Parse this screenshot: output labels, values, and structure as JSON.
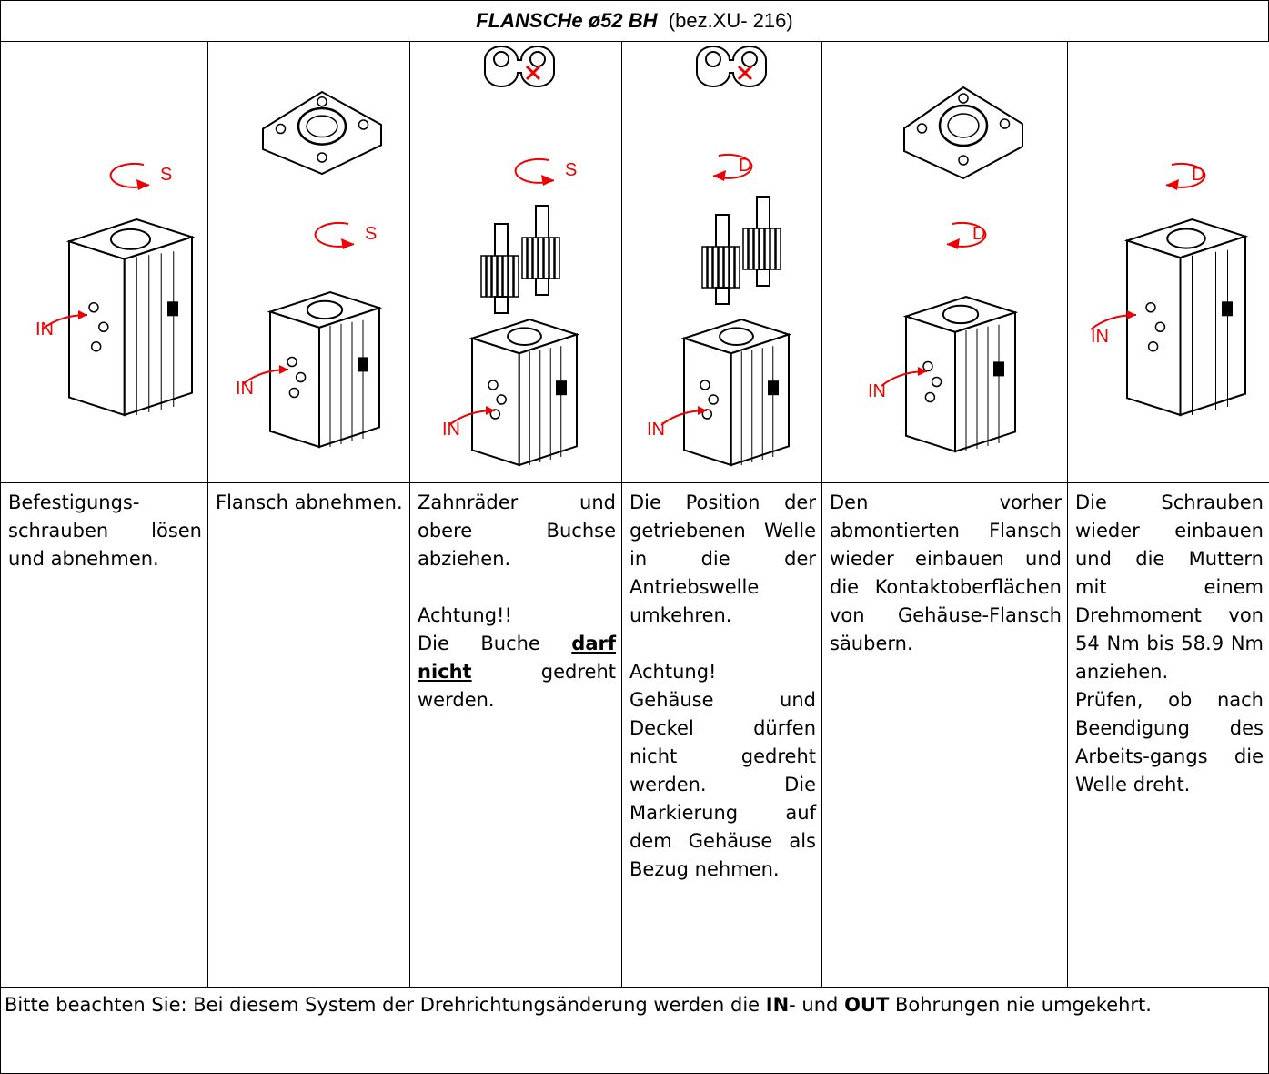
{
  "header": {
    "title": "FLANSCHe ø52 BH",
    "reference": "(bez.XU- 216)"
  },
  "columns": [
    {
      "image_labels": [
        "S",
        "IN"
      ],
      "paragraphs": [
        [
          {
            "text": "Befestigungs-schrauben lösen und abnehmen."
          }
        ]
      ]
    },
    {
      "image_labels": [
        "S",
        "IN"
      ],
      "paragraphs": [
        [
          {
            "text": "Flansch abnehmen."
          }
        ]
      ]
    },
    {
      "image_labels": [
        "S",
        "IN"
      ],
      "paragraphs": [
        [
          {
            "text": "Zahnräder und obere Buchse abziehen."
          }
        ],
        [],
        [
          {
            "text": "Achtung!!"
          }
        ],
        [
          {
            "text": "Die Buche "
          },
          {
            "text": "darf nicht",
            "bold": true,
            "underline": true
          },
          {
            "text": " gedreht werden."
          }
        ]
      ]
    },
    {
      "image_labels": [
        "D",
        "IN"
      ],
      "paragraphs": [
        [
          {
            "text": "Die Position der getriebenen Welle in die der Antriebswelle umkehren."
          }
        ],
        [],
        [
          {
            "text": "Achtung!"
          }
        ],
        [
          {
            "text": "Gehäuse und Deckel dürfen nicht gedreht werden. Die Markierung auf dem Gehäuse als Bezug nehmen."
          }
        ]
      ]
    },
    {
      "image_labels": [
        "D",
        "IN"
      ],
      "paragraphs": [
        [
          {
            "text": "Den vorher abmontierten Flansch wieder einbauen und die Kontaktoberflächen von Gehäuse-Flansch säubern."
          }
        ]
      ]
    },
    {
      "image_labels": [
        "D",
        "IN"
      ],
      "paragraphs": [
        [
          {
            "text": "Die Schrauben wieder einbauen und die Muttern mit einem Drehmoment von 54 Nm bis 58.9 Nm anziehen."
          }
        ],
        [
          {
            "text": "Prüfen, ob nach Beendigung des Arbeits-gangs die Welle dreht."
          }
        ]
      ]
    }
  ],
  "footer": [
    {
      "text": "Bitte beachten Sie: Bei diesem System der Drehrichtungsänderung werden die "
    },
    {
      "text": "IN",
      "bold": true
    },
    {
      "text": "- und "
    },
    {
      "text": "OUT",
      "bold": true
    },
    {
      "text": " Bohrungen nie umgekehrt."
    }
  ]
}
